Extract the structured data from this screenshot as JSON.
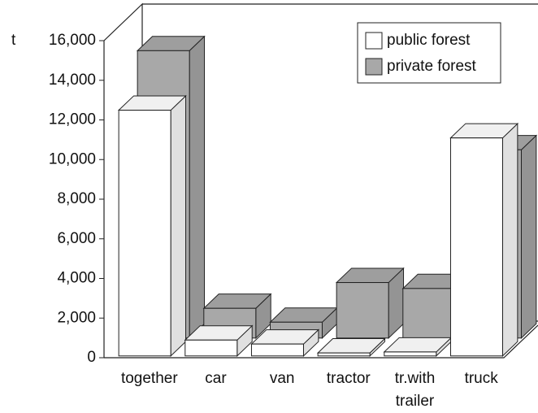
{
  "chart_data": {
    "type": "bar3d",
    "y_label": "t",
    "categories": [
      "together",
      "car",
      "van",
      "tractor",
      "tr.with trailer",
      "truck"
    ],
    "series": [
      {
        "name": "public forest",
        "color": "#ffffff",
        "values": [
          12400,
          800,
          600,
          150,
          200,
          11000
        ]
      },
      {
        "name": "private forest",
        "color": "#a8a8a8",
        "values": [
          14500,
          1500,
          800,
          2800,
          2500,
          9500
        ]
      }
    ],
    "ylim": [
      0,
      16000
    ],
    "yticks": [
      {
        "value": 0,
        "label": "0"
      },
      {
        "value": 2000,
        "label": "2,000"
      },
      {
        "value": 4000,
        "label": "4,000"
      },
      {
        "value": 6000,
        "label": "6,000"
      },
      {
        "value": 8000,
        "label": "8,000"
      },
      {
        "value": 10000,
        "label": "10,000"
      },
      {
        "value": 12000,
        "label": "12,000"
      },
      {
        "value": 14000,
        "label": "14,000"
      },
      {
        "value": 16000,
        "label": "16,000"
      }
    ],
    "legend": "top-right",
    "grid": false
  }
}
